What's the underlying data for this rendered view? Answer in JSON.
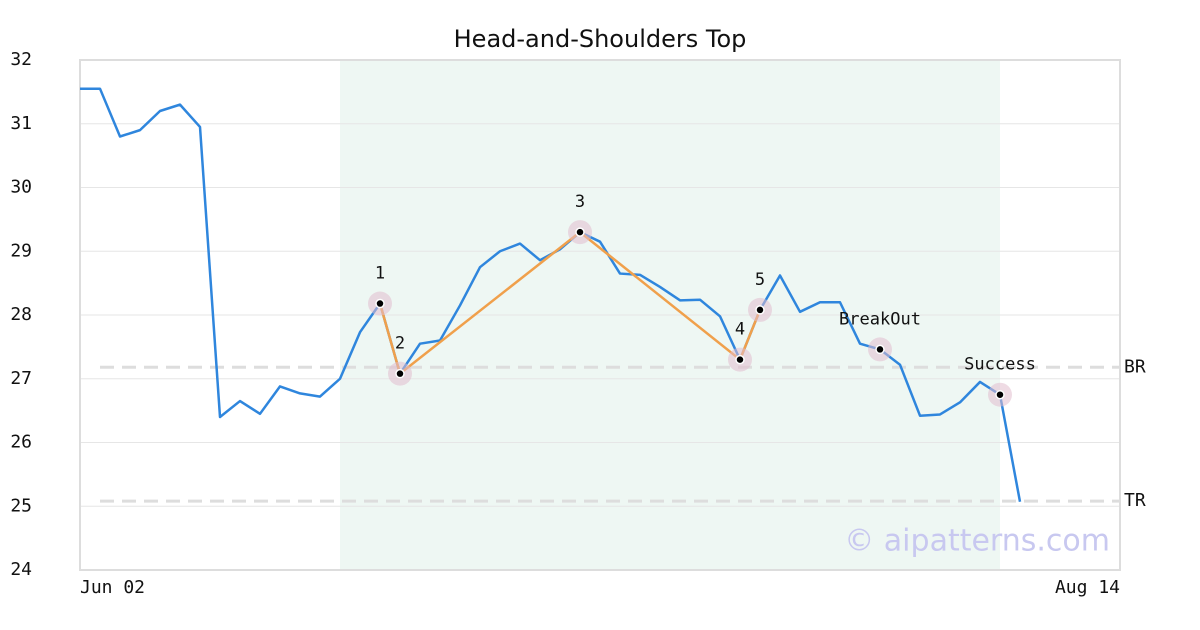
{
  "chart_data": {
    "type": "line",
    "title": "Head-and-Shoulders Top",
    "categories": [
      "Jun 02",
      null,
      null,
      null,
      null,
      null,
      null,
      null,
      null,
      null,
      null,
      null,
      null,
      null,
      null,
      null,
      null,
      null,
      null,
      null,
      null,
      null,
      null,
      null,
      null,
      null,
      null,
      null,
      null,
      null,
      null,
      null,
      null,
      null,
      null,
      null,
      null,
      null,
      null,
      null,
      null,
      null,
      null,
      null,
      null,
      null,
      null,
      null,
      null,
      null,
      null,
      null,
      "Aug 14"
    ],
    "series": [
      {
        "color": "#2f86dd",
        "values": [
          31.55,
          31.55,
          30.8,
          30.9,
          31.2,
          31.3,
          30.95,
          26.4,
          26.65,
          26.45,
          26.88,
          26.77,
          26.72,
          27.0,
          27.73,
          28.18,
          27.08,
          27.55,
          27.6,
          28.15,
          28.75,
          29.0,
          29.12,
          28.86,
          29.03,
          29.3,
          29.15,
          28.65,
          28.63,
          28.44,
          28.23,
          28.24,
          27.98,
          27.3,
          28.08,
          28.62,
          28.05,
          28.2,
          28.2,
          27.55,
          27.46,
          27.22,
          26.42,
          26.44,
          26.63,
          26.95,
          26.75,
          25.07,
          null,
          null,
          null,
          null,
          null
        ]
      }
    ],
    "pattern": {
      "color": "#f0a04b",
      "labels": [
        "1",
        "2",
        "3",
        "4",
        "5"
      ],
      "x": [
        15,
        16,
        25,
        33,
        34
      ],
      "values": [
        28.18,
        27.08,
        29.3,
        27.3,
        28.08
      ]
    },
    "signals": {
      "labels": [
        "BreakOut",
        "Success"
      ],
      "x": [
        40,
        46
      ],
      "values": [
        27.46,
        26.75
      ]
    },
    "highlight": {
      "start": 13,
      "end": 46,
      "color": "#eef7f3"
    },
    "reference_lines": [
      {
        "label": "BR",
        "value": 27.18
      },
      {
        "label": "TR",
        "value": 25.08
      }
    ],
    "ylim": [
      24,
      32
    ],
    "yticks": [
      24,
      25,
      26,
      27,
      28,
      29,
      30,
      31,
      32
    ],
    "grid": true,
    "watermark": "© aipatterns.com"
  }
}
